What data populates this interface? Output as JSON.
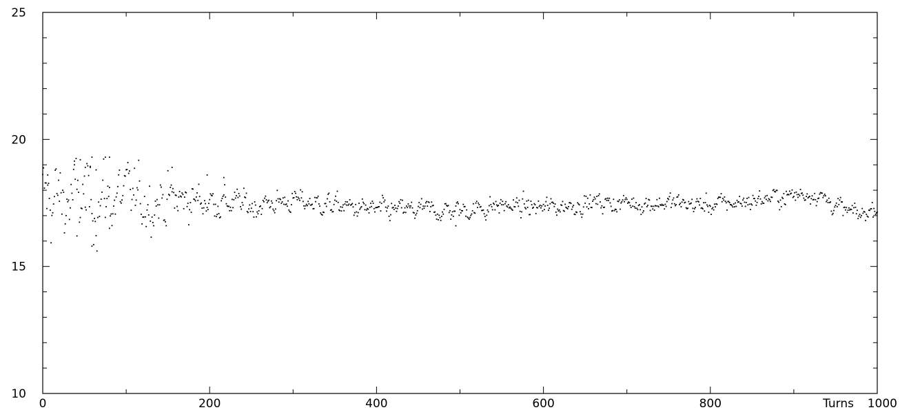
{
  "chart_data": {
    "type": "scatter",
    "title": "",
    "xlabel": "Turns",
    "ylabel": "",
    "xlim": [
      0,
      1000
    ],
    "ylim": [
      10,
      25
    ],
    "grid": false,
    "x_ticks": [
      0,
      200,
      400,
      600,
      800,
      1000
    ],
    "x_tick_labels": [
      "0",
      "200",
      "400",
      "600",
      "800",
      "1000"
    ],
    "y_ticks": [
      10,
      15,
      20,
      25
    ],
    "y_tick_labels": [
      "10",
      "15",
      "20",
      "25"
    ],
    "marker_color": "#000000",
    "trend": {
      "x": [
        0,
        50,
        100,
        150,
        200,
        250,
        300,
        350,
        400,
        450,
        500,
        550,
        600,
        650,
        700,
        750,
        800,
        850,
        900,
        925,
        960,
        980,
        1000
      ],
      "y": [
        17.6,
        17.6,
        17.7,
        17.6,
        17.6,
        17.4,
        17.6,
        17.4,
        17.2,
        17.2,
        17.2,
        17.4,
        17.3,
        17.5,
        17.5,
        17.5,
        17.4,
        17.6,
        17.8,
        17.9,
        17.2,
        17.0,
        17.4
      ]
    },
    "spread": {
      "x": [
        0,
        80,
        160,
        220,
        300,
        1000
      ],
      "y": [
        0.9,
        0.75,
        0.45,
        0.3,
        0.22,
        0.18
      ]
    },
    "outliers": [
      {
        "x": 6,
        "y": 18.6
      },
      {
        "x": 38,
        "y": 19.0
      },
      {
        "x": 41,
        "y": 16.2
      },
      {
        "x": 45,
        "y": 19.2
      },
      {
        "x": 51,
        "y": 18.9
      },
      {
        "x": 57,
        "y": 18.9
      },
      {
        "x": 59,
        "y": 15.8
      },
      {
        "x": 59,
        "y": 19.3
      },
      {
        "x": 64,
        "y": 18.8
      },
      {
        "x": 75,
        "y": 19.3
      },
      {
        "x": 80,
        "y": 19.3
      },
      {
        "x": 80,
        "y": 16.5
      },
      {
        "x": 155,
        "y": 18.9
      },
      {
        "x": 197,
        "y": 18.6
      },
      {
        "x": 217,
        "y": 18.5
      },
      {
        "x": 495,
        "y": 16.6
      }
    ]
  }
}
